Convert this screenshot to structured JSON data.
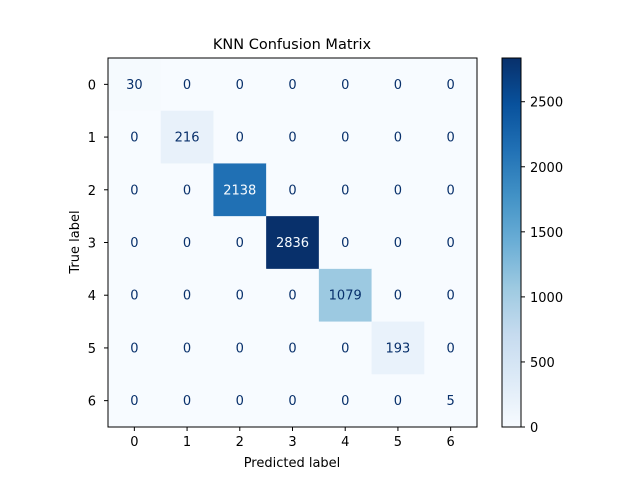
{
  "chart_data": {
    "type": "heatmap",
    "title": "KNN Confusion Matrix",
    "xlabel": "Predicted label",
    "ylabel": "True label",
    "x_categories": [
      "0",
      "1",
      "2",
      "3",
      "4",
      "5",
      "6"
    ],
    "y_categories": [
      "0",
      "1",
      "2",
      "3",
      "4",
      "5",
      "6"
    ],
    "values": [
      [
        30,
        0,
        0,
        0,
        0,
        0,
        0
      ],
      [
        0,
        216,
        0,
        0,
        0,
        0,
        0
      ],
      [
        0,
        0,
        2138,
        0,
        0,
        0,
        0
      ],
      [
        0,
        0,
        0,
        2836,
        0,
        0,
        0
      ],
      [
        0,
        0,
        0,
        0,
        1079,
        0,
        0
      ],
      [
        0,
        0,
        0,
        0,
        0,
        193,
        0
      ],
      [
        0,
        0,
        0,
        0,
        0,
        0,
        5
      ]
    ],
    "colormap": "Blues",
    "colorbar": {
      "range": [
        0,
        2836
      ],
      "ticks": [
        0,
        500,
        1000,
        1500,
        2000,
        2500
      ]
    }
  }
}
